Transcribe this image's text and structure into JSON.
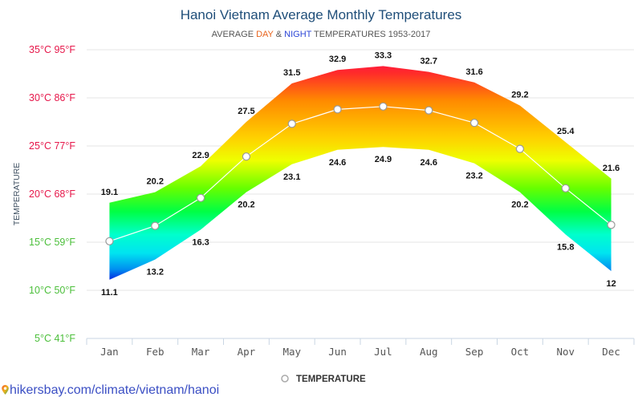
{
  "chart_data": {
    "type": "area",
    "title": "Hanoi Vietnam Average Monthly Temperatures",
    "subtitle": {
      "prefix": "AVERAGE ",
      "day": "DAY",
      "amp": " & ",
      "night": "NIGHT",
      "suffix": " TEMPERATURES 1953-2017"
    },
    "ylabel": "TEMPERATURE",
    "xlabel": "",
    "categories": [
      "Jan",
      "Feb",
      "Mar",
      "Apr",
      "May",
      "Jun",
      "Jul",
      "Aug",
      "Sep",
      "Oct",
      "Nov",
      "Dec"
    ],
    "ylim": [
      5,
      35
    ],
    "yticks": [
      {
        "value": 35,
        "label": "35°C 95°F"
      },
      {
        "value": 30,
        "label": "30°C 86°F"
      },
      {
        "value": 25,
        "label": "25°C 77°F"
      },
      {
        "value": 20,
        "label": "20°C 68°F"
      },
      {
        "value": 15,
        "label": "15°C 59°F"
      },
      {
        "value": 10,
        "label": "10°C 50°F"
      },
      {
        "value": 5,
        "label": "5°C 41°F"
      }
    ],
    "grid": true,
    "series": [
      {
        "name": "Day",
        "values": [
          19.1,
          20.2,
          22.9,
          27.5,
          31.5,
          32.9,
          33.3,
          32.7,
          31.6,
          29.2,
          25.4,
          21.6
        ]
      },
      {
        "name": "Night",
        "values": [
          11.1,
          13.2,
          16.3,
          20.2,
          23.1,
          24.6,
          24.9,
          24.6,
          23.2,
          20.2,
          15.8,
          12
        ]
      },
      {
        "name": "TEMPERATURE",
        "values": [
          15.1,
          16.7,
          19.6,
          23.9,
          27.3,
          28.8,
          29.1,
          28.7,
          27.4,
          24.7,
          20.6,
          16.8
        ]
      }
    ],
    "legend": {
      "label": "TEMPERATURE",
      "position": "bottom-center"
    },
    "colors": {
      "title": "#1f4e79",
      "day": "#e8641e",
      "night": "#2c46d6",
      "hot_tick": "#e6174a",
      "cool_tick": "#4bbf3a",
      "grid": "#e6e6e6",
      "axis": "#c9d6e3"
    }
  },
  "footer": {
    "source": "hikersbay.com/climate/vietnam/hanoi",
    "icon": "map-pin-icon"
  }
}
